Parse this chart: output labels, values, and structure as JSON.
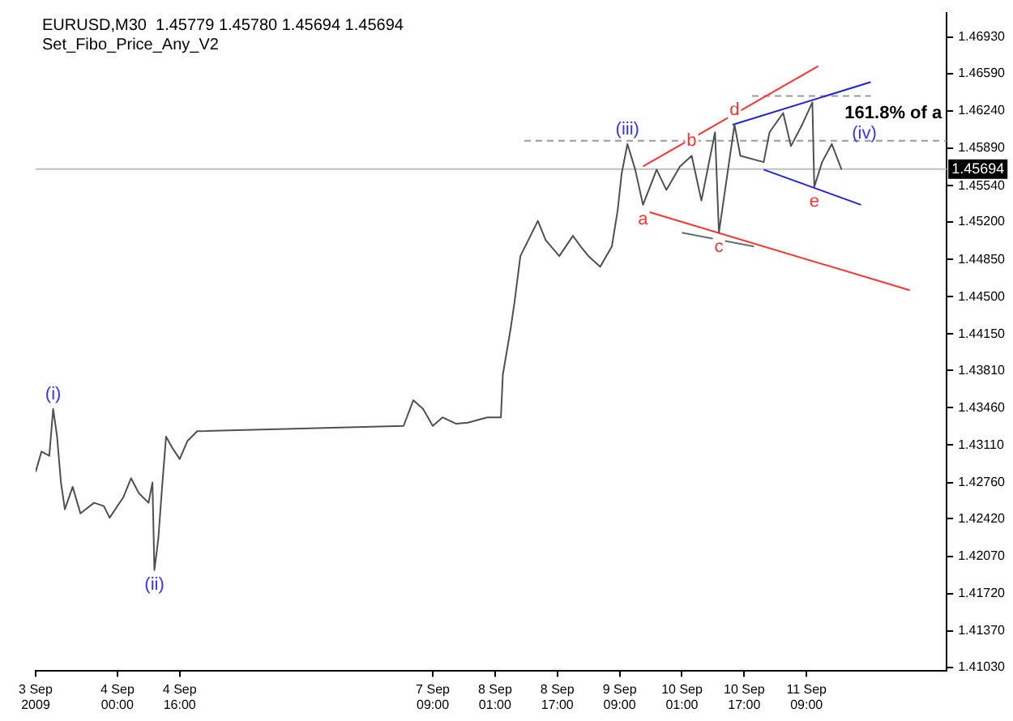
{
  "chart_data": {
    "type": "line",
    "title": "EURUSD,M30  1.45779 1.45780 1.45694 1.45694",
    "subtitle": "Set_Fibo_Price_Any_V2",
    "xlim": [
      "2009-09-03T03:00",
      "2009-09-12T21:00"
    ],
    "xticks": [
      {
        "value": "2009-09-03T03:00",
        "label": "3 Sep 2009"
      },
      {
        "value": "2009-09-04T00:00",
        "label": "4 Sep 00:00"
      },
      {
        "value": "2009-09-04T16:00",
        "label": "4 Sep 16:00"
      },
      {
        "value": "2009-09-07T09:00",
        "label": "7 Sep 09:00"
      },
      {
        "value": "2009-09-08T01:00",
        "label": "8 Sep 01:00"
      },
      {
        "value": "2009-09-08T17:00",
        "label": "8 Sep 17:00"
      },
      {
        "value": "2009-09-09T09:00",
        "label": "9 Sep 09:00"
      },
      {
        "value": "2009-09-10T01:00",
        "label": "10 Sep 01:00"
      },
      {
        "value": "2009-09-10T17:00",
        "label": "10 Sep 17:00"
      },
      {
        "value": "2009-09-11T09:00",
        "label": "11 Sep 09:00"
      }
    ],
    "ylim": [
      1.41,
      1.4716
    ],
    "yticks": [
      {
        "value": 1.4693,
        "label": "1.46930"
      },
      {
        "value": 1.4659,
        "label": "1.46590"
      },
      {
        "value": 1.4624,
        "label": "1.46240"
      },
      {
        "value": 1.4589,
        "label": "1.45890"
      },
      {
        "value": 1.4554,
        "label": "1.45540"
      },
      {
        "value": 1.452,
        "label": "1.45200"
      },
      {
        "value": 1.4485,
        "label": "1.44850"
      },
      {
        "value": 1.445,
        "label": "1.44500"
      },
      {
        "value": 1.4415,
        "label": "1.44150"
      },
      {
        "value": 1.4381,
        "label": "1.43810"
      },
      {
        "value": 1.4346,
        "label": "1.43460"
      },
      {
        "value": 1.4311,
        "label": "1.43110"
      },
      {
        "value": 1.4276,
        "label": "1.42760"
      },
      {
        "value": 1.4242,
        "label": "1.42420"
      },
      {
        "value": 1.4207,
        "label": "1.42070"
      },
      {
        "value": 1.4172,
        "label": "1.41720"
      },
      {
        "value": 1.4137,
        "label": "1.41370"
      },
      {
        "value": 1.4103,
        "label": "1.41030"
      }
    ],
    "series": [
      {
        "color": "#505050",
        "x": [
          "2009-09-03T03:00",
          "2009-09-03T04:30",
          "2009-09-03T06:30",
          "2009-09-03T07:30",
          "2009-09-03T08:30",
          "2009-09-03T09:30",
          "2009-09-03T10:30",
          "2009-09-03T12:30",
          "2009-09-03T14:30",
          "2009-09-03T18:00",
          "2009-09-03T20:30",
          "2009-09-03T22:00",
          "2009-09-04T01:30",
          "2009-09-04T03:30",
          "2009-09-04T05:30",
          "2009-09-04T08:00",
          "2009-09-04T09:00",
          "2009-09-04T09:30",
          "2009-09-04T10:30",
          "2009-09-04T11:30",
          "2009-09-04T12:30",
          "2009-09-04T14:00",
          "2009-09-04T16:00",
          "2009-09-04T18:00",
          "2009-09-04T20:30",
          "2009-09-07T01:30",
          "2009-09-07T04:00",
          "2009-09-07T06:30",
          "2009-09-07T09:00",
          "2009-09-07T11:30",
          "2009-09-07T15:00",
          "2009-09-07T18:00",
          "2009-09-07T23:00",
          "2009-09-08T02:30",
          "2009-09-08T03:00",
          "2009-09-08T05:00",
          "2009-09-08T06:00",
          "2009-09-08T07:30",
          "2009-09-08T12:00",
          "2009-09-08T14:00",
          "2009-09-08T17:30",
          "2009-09-08T21:00",
          "2009-09-08T23:00",
          "2009-09-09T01:00",
          "2009-09-09T04:00",
          "2009-09-09T07:00",
          "2009-09-09T08:30",
          "2009-09-09T09:30",
          "2009-09-09T11:00",
          "2009-09-09T13:00",
          "2009-09-09T15:00",
          "2009-09-09T18:30",
          "2009-09-09T21:00",
          "2009-09-10T00:30",
          "2009-09-10T03:30",
          "2009-09-10T06:00",
          "2009-09-10T09:30",
          "2009-09-10T10:30",
          "2009-09-10T14:30",
          "2009-09-10T16:00",
          "2009-09-10T22:00",
          "2009-09-10T23:30",
          "2009-09-11T03:00",
          "2009-09-11T05:00",
          "2009-09-11T08:00",
          "2009-09-11T10:30",
          "2009-09-11T11:00",
          "2009-09-11T13:00",
          "2009-09-11T15:30",
          "2009-09-11T18:00"
        ],
        "values": [
          1.4286,
          1.4305,
          1.4301,
          1.4345,
          1.4319,
          1.4276,
          1.4251,
          1.4272,
          1.4247,
          1.4257,
          1.4254,
          1.4243,
          1.4262,
          1.428,
          1.4266,
          1.4257,
          1.4276,
          1.4194,
          1.4223,
          1.4273,
          1.4319,
          1.4309,
          1.4298,
          1.4315,
          1.4324,
          1.4329,
          1.4353,
          1.4345,
          1.4329,
          1.4337,
          1.4331,
          1.4332,
          1.4337,
          1.4337,
          1.4377,
          1.442,
          1.4445,
          1.4488,
          1.4521,
          1.4503,
          1.4488,
          1.4507,
          1.4497,
          1.4488,
          1.4478,
          1.4497,
          1.4531,
          1.4565,
          1.4593,
          1.4569,
          1.4536,
          1.4569,
          1.455,
          1.4572,
          1.4582,
          1.454,
          1.4604,
          1.451,
          1.4611,
          1.4582,
          1.4576,
          1.4604,
          1.4622,
          1.4591,
          1.4612,
          1.4632,
          1.4553,
          1.4576,
          1.4593,
          1.4569
        ]
      },
      {
        "color": "#ff3333",
        "x": [
          "2009-09-09T15:00",
          "2009-09-11T12:00"
        ],
        "values": [
          1.4572,
          1.4666
        ]
      },
      {
        "color": "#ff3333",
        "x": [
          "2009-09-09T15:00",
          "2009-09-12T11:30"
        ],
        "values": [
          1.4531,
          1.4456
        ]
      },
      {
        "color": "#2222dd",
        "x": [
          "2009-09-10T14:00",
          "2009-09-12T01:30"
        ],
        "values": [
          1.4611,
          1.4651
        ]
      },
      {
        "color": "#2222dd",
        "x": [
          "2009-09-10T22:00",
          "2009-09-11T23:00"
        ],
        "values": [
          1.4569,
          1.4536
        ]
      },
      {
        "color": "#607070",
        "x": [
          "2009-09-10T01:00",
          "2009-09-10T19:30"
        ],
        "values": [
          1.451,
          1.4497
        ]
      },
      {
        "color": "#999999",
        "line_style": "dashed",
        "x": [
          "2009-09-08T08:30",
          "2009-09-12T21:00"
        ],
        "values": [
          1.4596,
          1.4596
        ]
      },
      {
        "color": "#999999",
        "line_style": "dashed",
        "x": [
          "2009-09-10T19:00",
          "2009-09-12T01:30"
        ],
        "values": [
          1.4638,
          1.4638
        ]
      }
    ],
    "ref_lines": [
      {
        "axis": "y",
        "value": 1.45694,
        "label": "1.45694",
        "color": "#c0c0c0"
      }
    ],
    "annotations": [
      {
        "text": "(i)",
        "x": "2009-09-03T07:30",
        "y": 1.4345
      },
      {
        "text": "(ii)",
        "x": "2009-09-04T09:30",
        "y": 1.4194
      },
      {
        "text": "(iii)",
        "x": "2009-09-09T11:00",
        "y": 1.4593
      },
      "(iv)",
      {
        "text": "a",
        "x": "2009-09-09T15:00",
        "y": 1.4536
      },
      {
        "text": "b",
        "x": "2009-09-10T03:30",
        "y": 1.4582
      },
      {
        "text": "c",
        "x": "2009-09-10T10:30",
        "y": 1.451
      },
      {
        "text": "d",
        "x": "2009-09-10T14:30",
        "y": 1.4611
      },
      {
        "text": "e",
        "x": "2009-09-11T11:00",
        "y": 1.4553
      },
      {
        "text": "161.8% of a",
        "x": "2009-09-12T01:30",
        "y": 1.4638
      }
    ]
  }
}
